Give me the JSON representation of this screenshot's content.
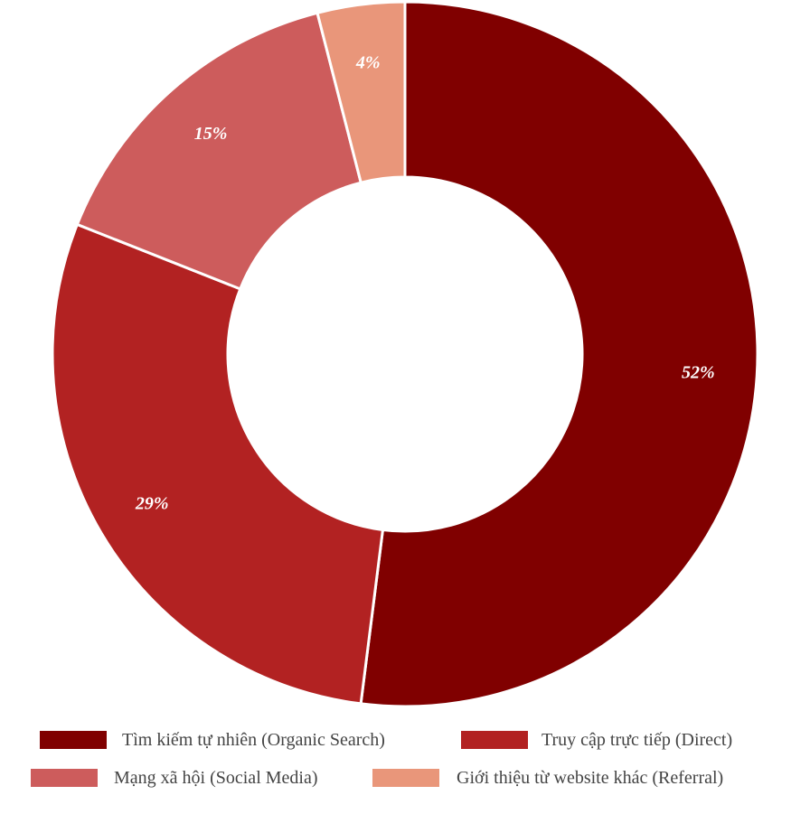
{
  "chart_data": {
    "type": "pie",
    "variant": "donut",
    "title": "",
    "series": [
      {
        "name": "Tìm kiếm tự nhiên (Organic Search)",
        "value": 52,
        "label": "52%",
        "color": "#800000"
      },
      {
        "name": "Truy cập trực tiếp (Direct)",
        "value": 29,
        "label": "29%",
        "color": "#B22222"
      },
      {
        "name": "Mạng xã hội (Social Media)",
        "value": 15,
        "label": "15%",
        "color": "#CD5C5C"
      },
      {
        "name": "Giới thiệu từ website khác (Referral)",
        "value": 4,
        "label": "4%",
        "color": "#E9967A"
      }
    ],
    "legend_position": "bottom",
    "start_angle": "top, clockwise",
    "label_color": "#ffffff"
  }
}
